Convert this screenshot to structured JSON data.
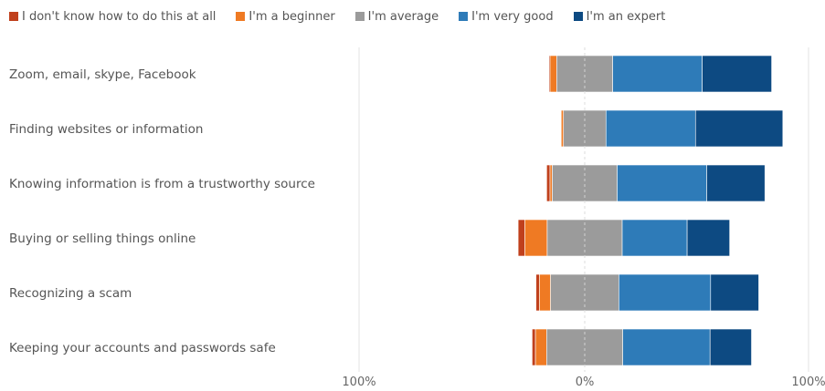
{
  "chart_data": {
    "type": "bar",
    "stacked": "diverging",
    "orientation": "horizontal",
    "legend_position": "top-left",
    "legend": [
      {
        "name": "I don't know how to do this at all",
        "color": "#c0401c"
      },
      {
        "name": "I'm a beginner",
        "color": "#ef7a23"
      },
      {
        "name": "I'm average",
        "color": "#9b9b9b"
      },
      {
        "name": "I'm very good",
        "color": "#2e7bb8"
      },
      {
        "name": "I'm an expert",
        "color": "#0d4a82"
      }
    ],
    "categories": [
      "Zoom, email, skype, Facebook",
      "Finding websites or information",
      "Knowing information is from a trustworthy source",
      "Buying or selling things online",
      "Recognizing a scam",
      "Keeping your accounts and passwords safe"
    ],
    "series": [
      {
        "name": "I don't know how to do this at all",
        "values": [
          0.5,
          0,
          1.5,
          3,
          1.5,
          1.5
        ]
      },
      {
        "name": "I'm a beginner",
        "values": [
          3,
          1,
          1,
          10,
          5,
          5
        ]
      },
      {
        "name": "I'm average",
        "values": [
          25,
          19,
          29,
          33.5,
          30.5,
          34
        ]
      },
      {
        "name": "I'm very good",
        "values": [
          40,
          40,
          40,
          29,
          41,
          39
        ]
      },
      {
        "name": "I'm an expert",
        "values": [
          31,
          39,
          26,
          19,
          21.5,
          18.5
        ]
      }
    ],
    "xlim": [
      -100,
      100
    ],
    "tick_labels": [
      "100%",
      "0%",
      "100%"
    ]
  }
}
